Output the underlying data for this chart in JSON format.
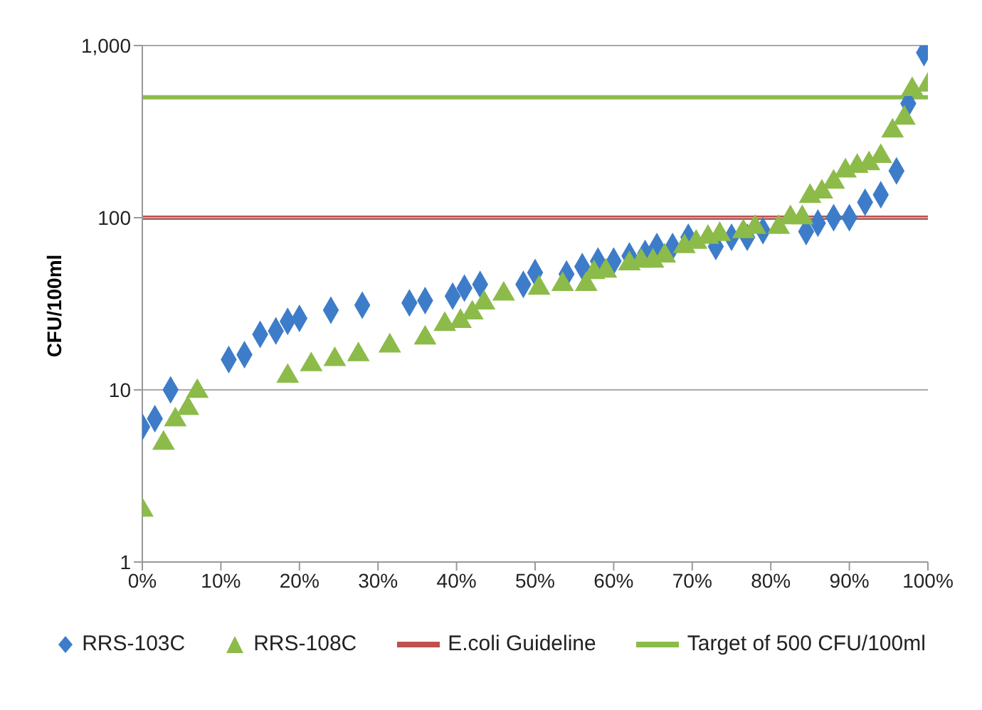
{
  "chart_data": {
    "type": "scatter",
    "ylabel": "CFU/100ml",
    "log": "y",
    "grid": "y",
    "legend": "bottom",
    "xlim": [
      0,
      100
    ],
    "xticks": [
      {
        "value": 0,
        "label": "0%"
      },
      {
        "value": 10,
        "label": "10%"
      },
      {
        "value": 20,
        "label": "20%"
      },
      {
        "value": 30,
        "label": "30%"
      },
      {
        "value": 40,
        "label": "40%"
      },
      {
        "value": 50,
        "label": "50%"
      },
      {
        "value": 60,
        "label": "60%"
      },
      {
        "value": 70,
        "label": "70%"
      },
      {
        "value": 80,
        "label": "80%"
      },
      {
        "value": 90,
        "label": "90%"
      },
      {
        "value": 100,
        "label": "100%"
      }
    ],
    "ylim": [
      1,
      1000
    ],
    "yticks": [
      1,
      10,
      100,
      {
        "value": 1000,
        "label": "1,000"
      }
    ],
    "series": [
      {
        "name": "RRS-103C",
        "color": "#3d7cc9",
        "marker": "diamond",
        "x": [
          0,
          1.6,
          3.6,
          11,
          13,
          15,
          17,
          18.5,
          20,
          24,
          28,
          34,
          36,
          39.5,
          41,
          43,
          48.5,
          50,
          54,
          56,
          58,
          60,
          62,
          64,
          65.5,
          67.5,
          69.5,
          73,
          75,
          77,
          79,
          84.5,
          86,
          88,
          90,
          92,
          94,
          96,
          97.5,
          99.5
        ],
        "values": [
          6.1,
          6.8,
          10,
          15,
          16,
          21,
          22,
          25,
          26,
          29,
          31,
          32,
          33,
          35,
          39,
          41,
          41,
          48,
          47,
          52,
          56,
          56,
          60,
          62,
          68,
          68,
          77,
          68,
          77,
          77,
          84,
          83,
          93,
          100,
          100,
          123,
          136,
          187,
          460,
          910
        ]
      },
      {
        "name": "RRS-108C",
        "color": "#8cbb4a",
        "marker": "triangle",
        "x": [
          0,
          2.7,
          4.2,
          5.8,
          7,
          18.5,
          21.5,
          24.5,
          27.5,
          31.5,
          36,
          38.5,
          40.5,
          42,
          43.5,
          46,
          50.5,
          53.5,
          56.5,
          57.5,
          59,
          62,
          63.5,
          65,
          66.5,
          69,
          70.5,
          72,
          73.5,
          76.5,
          78,
          81,
          82.5,
          84,
          85,
          86.5,
          88,
          89.5,
          91,
          92.5,
          94,
          95.5,
          97,
          98,
          100
        ],
        "values": [
          2,
          4.9,
          6.7,
          7.8,
          9.8,
          12,
          14,
          15,
          16,
          18,
          20,
          24,
          25,
          28,
          32,
          36,
          39,
          41,
          41,
          48,
          49,
          54,
          56,
          56,
          60,
          68,
          72,
          77,
          80,
          83,
          88,
          88,
          100,
          100,
          133,
          141,
          161,
          187,
          199,
          206,
          227,
          319,
          379,
          555,
          590
        ]
      }
    ],
    "ref_lines": [
      {
        "axis": "y",
        "value": 100,
        "label": "E.coli Guideline",
        "color": "#c0504d"
      },
      {
        "axis": "y",
        "value": 500,
        "label": "Target of 500 CFU/100ml",
        "color": "#8cbb4a"
      }
    ]
  }
}
